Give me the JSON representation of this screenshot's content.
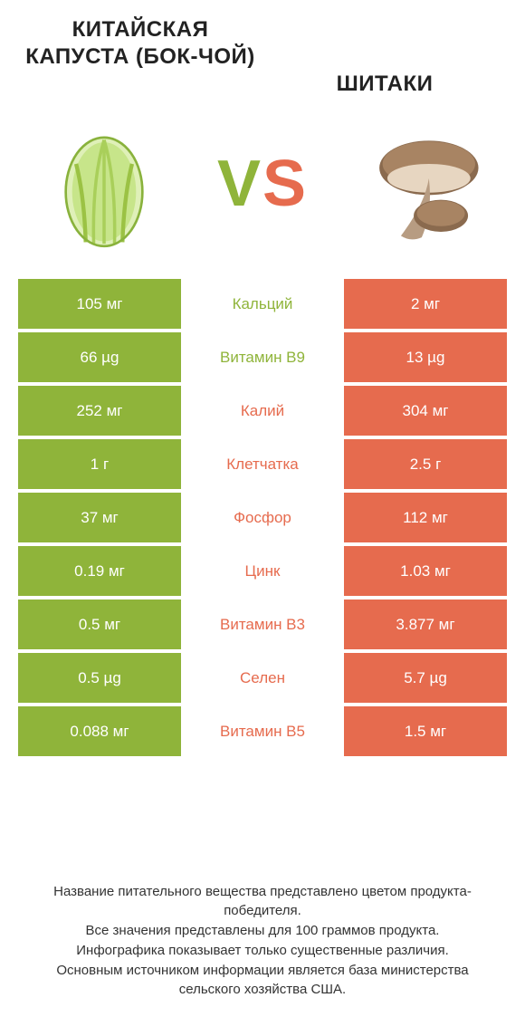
{
  "colors": {
    "green": "#8fb43a",
    "orange": "#e66b4e",
    "white": "#ffffff",
    "text": "#222222"
  },
  "header": {
    "left_title": "КИТАЙСКАЯ КАПУСТА (БОК-ЧОЙ)",
    "right_title": "ШИТАКИ",
    "vs_v": "V",
    "vs_s": "S"
  },
  "rows": [
    {
      "left": "105 мг",
      "mid": "Кальций",
      "right": "2 мг",
      "winner": "left"
    },
    {
      "left": "66 µg",
      "mid": "Витамин B9",
      "right": "13 µg",
      "winner": "left"
    },
    {
      "left": "252 мг",
      "mid": "Калий",
      "right": "304 мг",
      "winner": "right"
    },
    {
      "left": "1 г",
      "mid": "Клетчатка",
      "right": "2.5 г",
      "winner": "right"
    },
    {
      "left": "37 мг",
      "mid": "Фосфор",
      "right": "112 мг",
      "winner": "right"
    },
    {
      "left": "0.19 мг",
      "mid": "Цинк",
      "right": "1.03 мг",
      "winner": "right"
    },
    {
      "left": "0.5 мг",
      "mid": "Витамин B3",
      "right": "3.877 мг",
      "winner": "right"
    },
    {
      "left": "0.5 µg",
      "mid": "Селен",
      "right": "5.7 µg",
      "winner": "right"
    },
    {
      "left": "0.088 мг",
      "mid": "Витамин B5",
      "right": "1.5 мг",
      "winner": "right"
    }
  ],
  "footer": {
    "line1": "Название питательного вещества представлено цветом продукта-победителя.",
    "line2": "Все значения представлены для 100 граммов продукта.",
    "line3": "Инфографика показывает только существенные различия.",
    "line4": "Основным источником информации является база министерства сельского хозяйства США."
  }
}
